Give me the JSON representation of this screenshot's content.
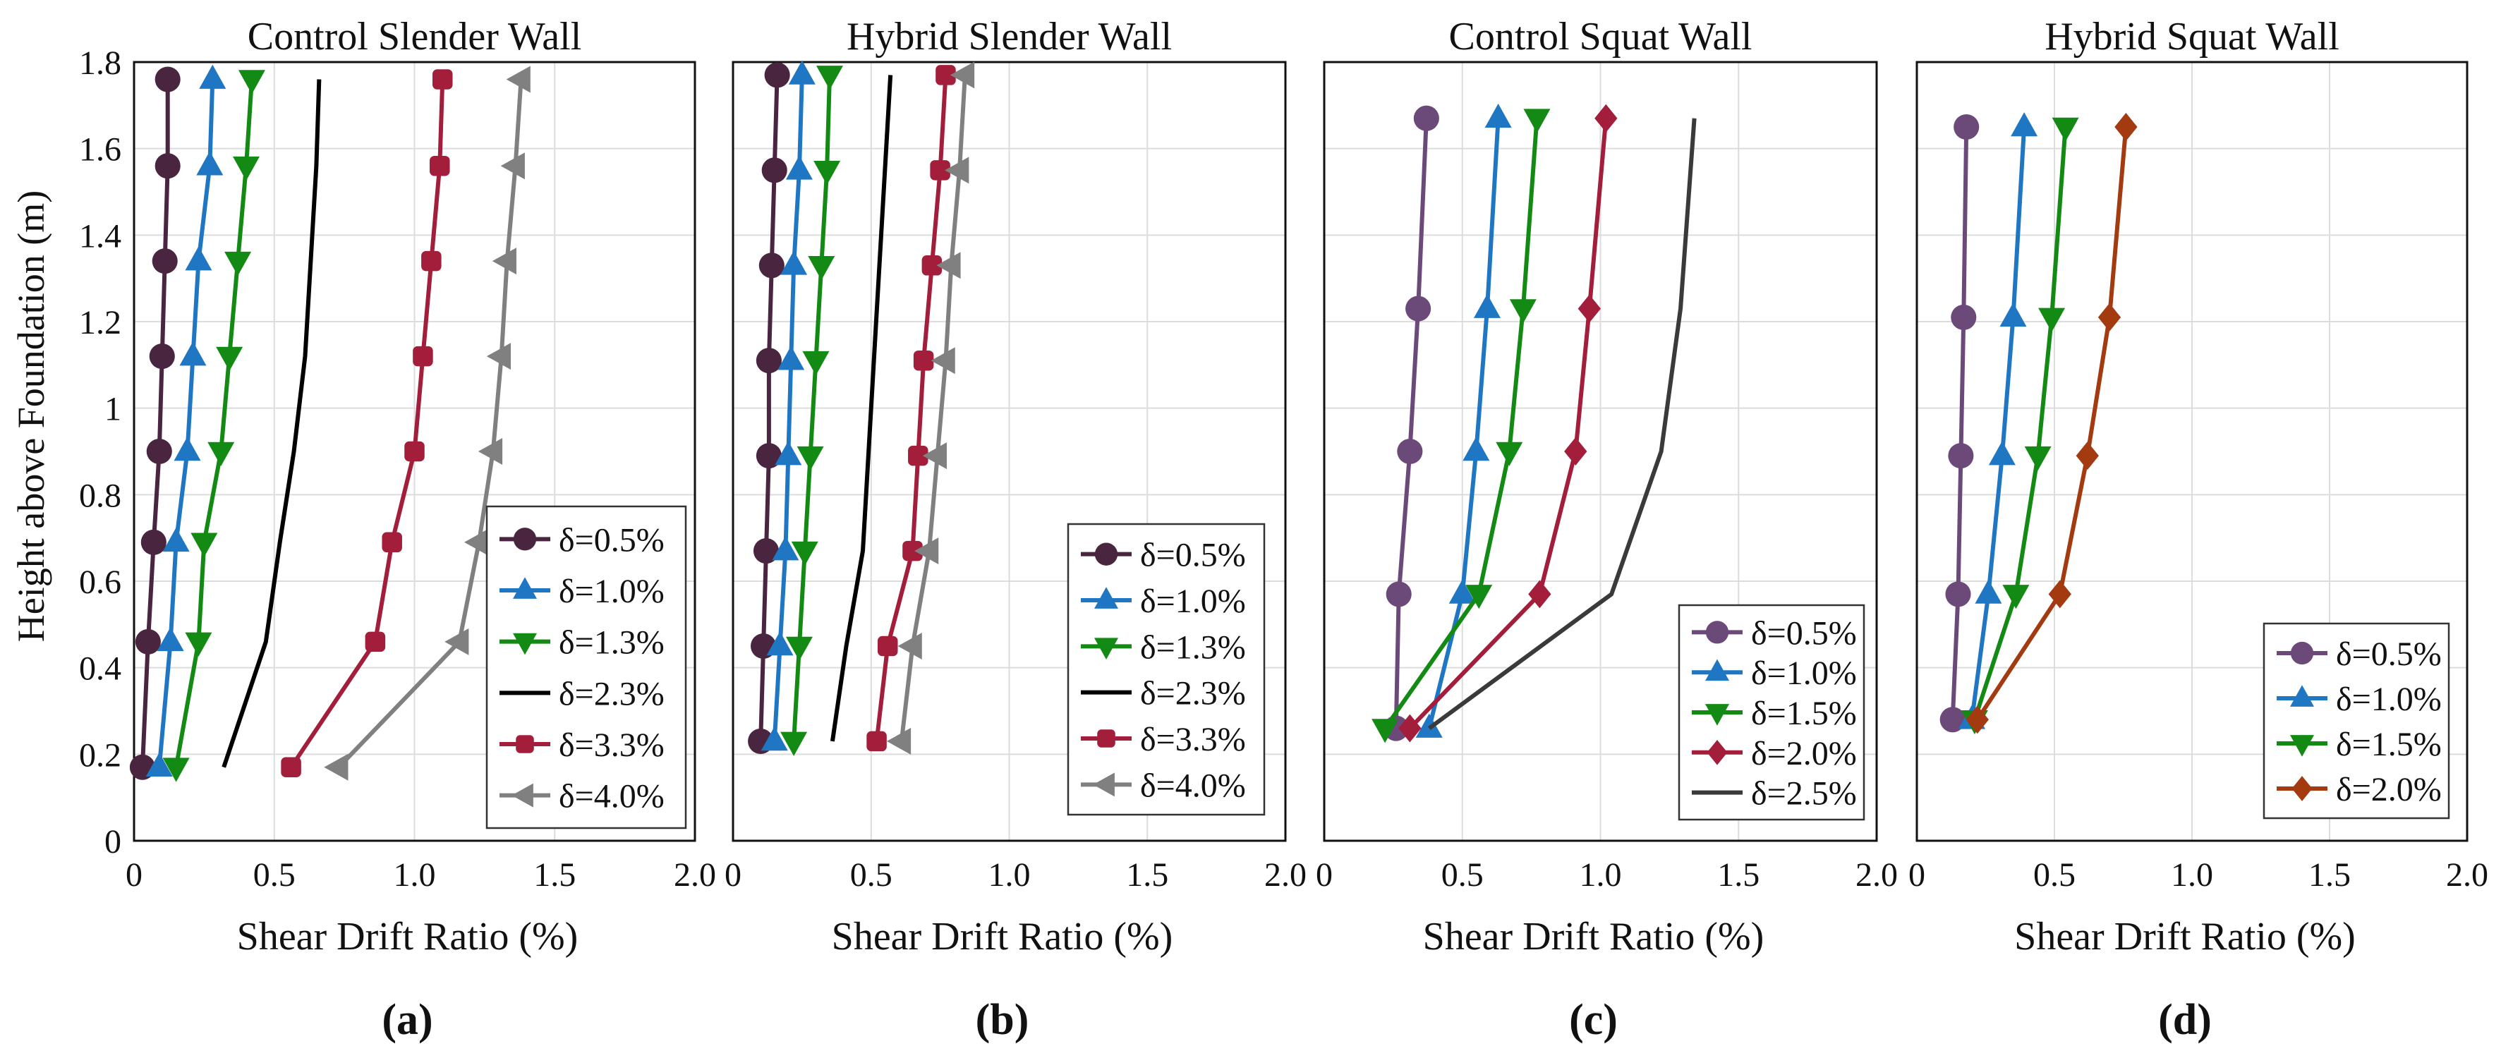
{
  "figure": {
    "ylabel": "Height above Foundation (m)",
    "y_tick_labels": [
      "0",
      "0.2",
      "0.4",
      "0.6",
      "0.8",
      "1",
      "1.2",
      "1.4",
      "1.6",
      "1.8"
    ],
    "x_tick_labels": [
      "0",
      "0.5",
      "1.0",
      "1.5",
      "2.0"
    ],
    "panel_labels": [
      "(a)",
      "(b)",
      "(c)",
      "(d)"
    ]
  },
  "chart_data": [
    {
      "type": "line",
      "title": "Control Slender Wall",
      "xlabel": "Shear Drift Ratio (%)",
      "ylabel": "Height above Foundation (m)",
      "xlim": [
        0,
        2.0
      ],
      "ylim": [
        0,
        1.8
      ],
      "grid": true,
      "legend": "bottom-right",
      "series": [
        {
          "name": "δ=0.5%",
          "color": "#4a2540",
          "marker": "circle",
          "x": [
            0.03,
            0.05,
            0.07,
            0.09,
            0.1,
            0.11,
            0.12,
            0.12
          ],
          "y": [
            0.17,
            0.46,
            0.69,
            0.9,
            1.12,
            1.34,
            1.56,
            1.76
          ]
        },
        {
          "name": "δ=1.0%",
          "color": "#1f77c4",
          "marker": "triangle-up",
          "x": [
            0.09,
            0.13,
            0.15,
            0.19,
            0.21,
            0.23,
            0.27,
            0.28
          ],
          "y": [
            0.17,
            0.46,
            0.69,
            0.9,
            1.12,
            1.34,
            1.56,
            1.76
          ]
        },
        {
          "name": "δ=1.3%",
          "color": "#138a13",
          "marker": "triangle-down",
          "x": [
            0.15,
            0.23,
            0.25,
            0.31,
            0.34,
            0.37,
            0.4,
            0.42
          ],
          "y": [
            0.17,
            0.46,
            0.69,
            0.9,
            1.12,
            1.34,
            1.56,
            1.76
          ]
        },
        {
          "name": "δ=2.3%",
          "color": "#000000",
          "marker": "none",
          "x": [
            0.32,
            0.47,
            0.52,
            0.57,
            0.61,
            0.63,
            0.65,
            0.66
          ],
          "y": [
            0.17,
            0.46,
            0.69,
            0.9,
            1.12,
            1.34,
            1.56,
            1.76
          ]
        },
        {
          "name": "δ=3.3%",
          "color": "#a31e3a",
          "marker": "square",
          "x": [
            0.56,
            0.86,
            0.92,
            1.0,
            1.03,
            1.06,
            1.09,
            1.1
          ],
          "y": [
            0.17,
            0.46,
            0.69,
            0.9,
            1.12,
            1.34,
            1.56,
            1.76
          ]
        },
        {
          "name": "δ=4.0%",
          "color": "#808080",
          "marker": "triangle-left",
          "x": [
            0.73,
            1.16,
            1.23,
            1.28,
            1.31,
            1.33,
            1.36,
            1.38
          ],
          "y": [
            0.17,
            0.46,
            0.69,
            0.9,
            1.12,
            1.34,
            1.56,
            1.76
          ]
        }
      ]
    },
    {
      "type": "line",
      "title": "Hybrid Slender Wall",
      "xlabel": "Shear Drift Ratio (%)",
      "xlim": [
        0,
        2.0
      ],
      "ylim": [
        0,
        1.8
      ],
      "grid": true,
      "legend": "bottom-right",
      "series": [
        {
          "name": "δ=0.5%",
          "color": "#4a2540",
          "marker": "circle",
          "x": [
            0.1,
            0.11,
            0.12,
            0.13,
            0.13,
            0.14,
            0.15,
            0.16
          ],
          "y": [
            0.23,
            0.45,
            0.67,
            0.89,
            1.11,
            1.33,
            1.55,
            1.77
          ]
        },
        {
          "name": "δ=1.0%",
          "color": "#1f77c4",
          "marker": "triangle-up",
          "x": [
            0.15,
            0.17,
            0.19,
            0.2,
            0.21,
            0.22,
            0.24,
            0.25
          ],
          "y": [
            0.23,
            0.45,
            0.67,
            0.89,
            1.11,
            1.33,
            1.55,
            1.77
          ]
        },
        {
          "name": "δ=1.3%",
          "color": "#138a13",
          "marker": "triangle-down",
          "x": [
            0.22,
            0.24,
            0.26,
            0.28,
            0.3,
            0.32,
            0.34,
            0.35
          ],
          "y": [
            0.23,
            0.45,
            0.67,
            0.89,
            1.11,
            1.33,
            1.55,
            1.77
          ]
        },
        {
          "name": "δ=2.3%",
          "color": "#000000",
          "marker": "none",
          "x": [
            0.36,
            0.41,
            0.47,
            0.49,
            0.51,
            0.53,
            0.55,
            0.57
          ],
          "y": [
            0.23,
            0.45,
            0.67,
            0.89,
            1.11,
            1.33,
            1.55,
            1.77
          ]
        },
        {
          "name": "δ=3.3%",
          "color": "#a31e3a",
          "marker": "square",
          "x": [
            0.52,
            0.56,
            0.65,
            0.67,
            0.69,
            0.72,
            0.75,
            0.77
          ],
          "y": [
            0.23,
            0.45,
            0.67,
            0.89,
            1.11,
            1.33,
            1.55,
            1.77
          ]
        },
        {
          "name": "δ=4.0%",
          "color": "#808080",
          "marker": "triangle-left",
          "x": [
            0.61,
            0.65,
            0.71,
            0.74,
            0.77,
            0.79,
            0.82,
            0.84
          ],
          "y": [
            0.23,
            0.45,
            0.67,
            0.89,
            1.11,
            1.33,
            1.55,
            1.77
          ]
        }
      ]
    },
    {
      "type": "line",
      "title": "Control Squat Wall",
      "xlabel": "Shear Drift Ratio (%)",
      "xlim": [
        0,
        2.0
      ],
      "ylim": [
        0,
        1.8
      ],
      "grid": true,
      "legend": "bottom-right",
      "series": [
        {
          "name": "δ=0.5%",
          "color": "#6b4a7a",
          "marker": "circle",
          "x": [
            0.26,
            0.27,
            0.31,
            0.34,
            0.37
          ],
          "y": [
            0.26,
            0.57,
            0.9,
            1.23,
            1.67
          ]
        },
        {
          "name": "δ=1.0%",
          "color": "#1f77c4",
          "marker": "triangle-up",
          "x": [
            0.38,
            0.5,
            0.55,
            0.59,
            0.63
          ],
          "y": [
            0.26,
            0.57,
            0.9,
            1.23,
            1.67
          ]
        },
        {
          "name": "δ=1.5%",
          "color": "#138a13",
          "marker": "triangle-down",
          "x": [
            0.22,
            0.56,
            0.67,
            0.72,
            0.77
          ],
          "y": [
            0.26,
            0.57,
            0.9,
            1.23,
            1.67
          ]
        },
        {
          "name": "δ=2.0%",
          "color": "#a31e3a",
          "marker": "diamond",
          "x": [
            0.31,
            0.78,
            0.91,
            0.96,
            1.02
          ],
          "y": [
            0.26,
            0.57,
            0.9,
            1.23,
            1.67
          ]
        },
        {
          "name": "δ=2.5%",
          "color": "#3a3a3a",
          "marker": "none",
          "x": [
            0.38,
            1.04,
            1.22,
            1.29,
            1.34
          ],
          "y": [
            0.26,
            0.57,
            0.9,
            1.23,
            1.67
          ]
        }
      ]
    },
    {
      "type": "line",
      "title": "Hybrid Squat Wall",
      "xlabel": "Shear Drift Ratio (%)",
      "xlim": [
        0,
        2.0
      ],
      "ylim": [
        0,
        1.8
      ],
      "grid": true,
      "legend": "bottom-right",
      "series": [
        {
          "name": "δ=0.5%",
          "color": "#6b4a7a",
          "marker": "circle",
          "x": [
            0.13,
            0.15,
            0.16,
            0.17,
            0.18
          ],
          "y": [
            0.28,
            0.57,
            0.89,
            1.21,
            1.65
          ]
        },
        {
          "name": "δ=1.0%",
          "color": "#1f77c4",
          "marker": "triangle-up",
          "x": [
            0.2,
            0.26,
            0.31,
            0.35,
            0.39
          ],
          "y": [
            0.28,
            0.57,
            0.89,
            1.21,
            1.65
          ]
        },
        {
          "name": "δ=1.5%",
          "color": "#138a13",
          "marker": "triangle-down",
          "x": [
            0.21,
            0.36,
            0.44,
            0.49,
            0.54
          ],
          "y": [
            0.28,
            0.57,
            0.89,
            1.21,
            1.65
          ]
        },
        {
          "name": "δ=2.0%",
          "color": "#a33a10",
          "marker": "diamond",
          "x": [
            0.22,
            0.52,
            0.62,
            0.7,
            0.76
          ],
          "y": [
            0.28,
            0.57,
            0.89,
            1.21,
            1.65
          ]
        }
      ]
    }
  ]
}
